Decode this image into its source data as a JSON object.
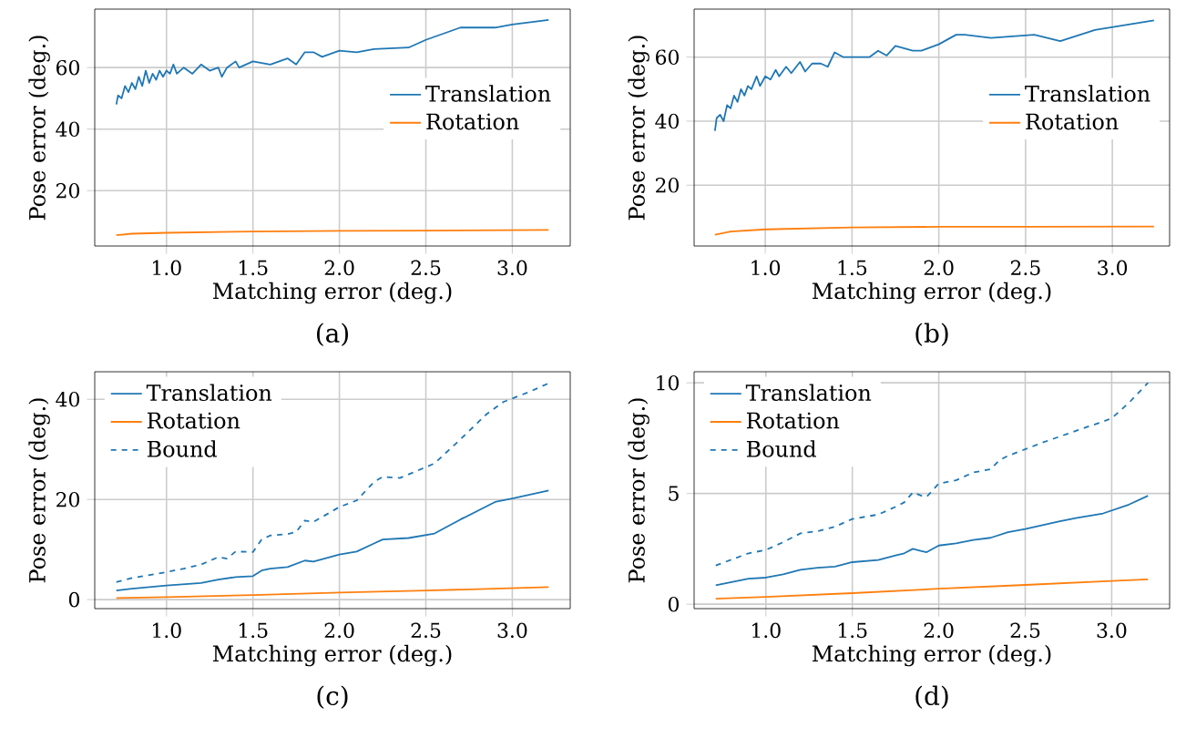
{
  "chart_data": [
    {
      "type": "line",
      "title": "(a)",
      "xlabel": "Matching error (deg.)",
      "ylabel": "Pose error (deg.)",
      "xlim": [
        0.585,
        3.335
      ],
      "ylim": [
        2,
        79
      ],
      "xticks": [
        {
          "value": 1,
          "label": "1.0"
        },
        {
          "value": 1.5,
          "label": "1.5"
        },
        {
          "value": 2,
          "label": "2.0"
        },
        {
          "value": 2.5,
          "label": "2.5"
        },
        {
          "value": 3,
          "label": "3.0"
        }
      ],
      "yticks": [
        20,
        40,
        60
      ],
      "grid": true,
      "legend": "right",
      "series": [
        {
          "name": "Translation",
          "color": "#1f77b4",
          "x": [
            0.71,
            0.72,
            0.74,
            0.76,
            0.78,
            0.8,
            0.82,
            0.84,
            0.86,
            0.88,
            0.9,
            0.92,
            0.94,
            0.96,
            0.98,
            1.0,
            1.02,
            1.04,
            1.06,
            1.1,
            1.15,
            1.2,
            1.25,
            1.3,
            1.32,
            1.35,
            1.4,
            1.42,
            1.5,
            1.6,
            1.7,
            1.75,
            1.8,
            1.85,
            1.9,
            2.0,
            2.1,
            2.2,
            2.4,
            2.5,
            2.7,
            2.9,
            3.0,
            3.21
          ],
          "values": [
            48,
            51,
            50,
            54,
            52,
            55,
            53,
            57,
            54,
            59,
            55,
            58,
            56,
            59,
            57,
            59,
            58,
            61,
            58,
            60,
            58,
            61,
            59,
            60,
            57,
            60,
            62,
            60,
            62,
            61,
            63,
            61,
            65,
            65,
            63.5,
            65.5,
            65,
            66,
            66.5,
            69,
            73,
            73,
            74,
            75.5
          ]
        },
        {
          "name": "Rotation",
          "color": "#ff7f0e",
          "x": [
            0.71,
            0.8,
            1.0,
            1.5,
            2.0,
            2.5,
            3.21
          ],
          "values": [
            5.5,
            6.0,
            6.3,
            6.7,
            6.9,
            7.0,
            7.2
          ]
        }
      ]
    },
    {
      "type": "line",
      "title": "(b)",
      "xlabel": "Matching error (deg.)",
      "ylabel": "Pose error (deg.)",
      "xlim": [
        0.59,
        3.33
      ],
      "ylim": [
        1,
        75
      ],
      "xticks": [
        {
          "value": 1,
          "label": "1.0"
        },
        {
          "value": 1.5,
          "label": "1.5"
        },
        {
          "value": 2,
          "label": "2.0"
        },
        {
          "value": 2.5,
          "label": "2.5"
        },
        {
          "value": 3,
          "label": "3.0"
        }
      ],
      "yticks": [
        20,
        40,
        60
      ],
      "grid": true,
      "legend": "right",
      "series": [
        {
          "name": "Translation",
          "color": "#1f77b4",
          "x": [
            0.71,
            0.72,
            0.74,
            0.76,
            0.78,
            0.8,
            0.82,
            0.84,
            0.86,
            0.88,
            0.9,
            0.92,
            0.95,
            0.97,
            1.0,
            1.03,
            1.06,
            1.08,
            1.12,
            1.15,
            1.2,
            1.23,
            1.27,
            1.32,
            1.36,
            1.4,
            1.45,
            1.5,
            1.6,
            1.65,
            1.7,
            1.75,
            1.85,
            1.9,
            2.0,
            2.1,
            2.15,
            2.3,
            2.55,
            2.7,
            2.9,
            3.24
          ],
          "values": [
            37,
            41,
            42,
            40,
            45,
            44,
            48,
            46,
            50,
            48,
            51,
            50,
            54,
            51,
            54,
            53,
            56,
            54,
            57,
            55,
            58.5,
            55.5,
            58,
            58,
            57,
            61.5,
            60,
            60,
            60,
            62,
            60.5,
            63.5,
            62,
            62,
            64,
            67,
            67,
            66,
            67,
            65,
            68.5,
            71.5
          ]
        },
        {
          "name": "Rotation",
          "color": "#ff7f0e",
          "x": [
            0.71,
            0.8,
            1.0,
            1.5,
            2.0,
            2.5,
            3.24
          ],
          "values": [
            4.5,
            5.5,
            6.2,
            6.8,
            7.0,
            7.0,
            7.1
          ]
        }
      ]
    },
    {
      "type": "line",
      "title": "(c)",
      "xlabel": "Matching error (deg.)",
      "ylabel": "Pose error (deg.)",
      "xlim": [
        0.585,
        3.335
      ],
      "ylim": [
        -1.8,
        45.5
      ],
      "xticks": [
        {
          "value": 1,
          "label": "1.0"
        },
        {
          "value": 1.5,
          "label": "1.5"
        },
        {
          "value": 2,
          "label": "2.0"
        },
        {
          "value": 2.5,
          "label": "2.5"
        },
        {
          "value": 3,
          "label": "3.0"
        }
      ],
      "yticks": [
        0,
        20,
        40
      ],
      "grid": true,
      "legend": "top left",
      "series": [
        {
          "name": "Translation",
          "color": "#1f77b4",
          "x": [
            0.71,
            0.8,
            1.0,
            1.2,
            1.3,
            1.4,
            1.5,
            1.55,
            1.6,
            1.7,
            1.8,
            1.85,
            2.0,
            2.1,
            2.2,
            2.25,
            2.4,
            2.55,
            2.7,
            2.9,
            3.0,
            3.21
          ],
          "values": [
            1.8,
            2.2,
            2.8,
            3.3,
            4.0,
            4.5,
            4.7,
            5.8,
            6.2,
            6.5,
            7.8,
            7.6,
            9.0,
            9.6,
            11.2,
            12.0,
            12.3,
            13.2,
            16,
            19.5,
            20.2,
            21.8
          ]
        },
        {
          "name": "Rotation",
          "color": "#ff7f0e",
          "x": [
            0.71,
            1.0,
            1.5,
            2.0,
            2.5,
            3.21
          ],
          "values": [
            0.3,
            0.5,
            0.9,
            1.4,
            1.8,
            2.5
          ]
        },
        {
          "name": "Bound",
          "color": "#1f77b4",
          "line_style": "dashed",
          "x": [
            0.71,
            0.8,
            1.0,
            1.1,
            1.2,
            1.3,
            1.35,
            1.4,
            1.5,
            1.55,
            1.6,
            1.7,
            1.75,
            1.8,
            1.85,
            2.0,
            2.1,
            2.2,
            2.25,
            2.35,
            2.4,
            2.55,
            2.7,
            2.85,
            2.95,
            3.1,
            3.21
          ],
          "values": [
            3.5,
            4.3,
            5.5,
            6.2,
            7.0,
            8.5,
            8.2,
            9.6,
            9.5,
            12.0,
            12.8,
            13.1,
            13.5,
            15.8,
            15.5,
            18.5,
            19.8,
            23.5,
            24.5,
            24.3,
            25,
            27.2,
            32,
            37,
            39.5,
            41.5,
            43.2
          ]
        }
      ]
    },
    {
      "type": "line",
      "title": "(d)",
      "xlabel": "Matching error (deg.)",
      "ylabel": "Pose error (deg.)",
      "xlim": [
        0.585,
        3.335
      ],
      "ylim": [
        -0.2,
        10.5
      ],
      "xticks": [
        {
          "value": 1,
          "label": "1.0"
        },
        {
          "value": 1.5,
          "label": "1.5"
        },
        {
          "value": 2,
          "label": "2.0"
        },
        {
          "value": 2.5,
          "label": "2.5"
        },
        {
          "value": 3,
          "label": "3.0"
        }
      ],
      "yticks": [
        0,
        5,
        10
      ],
      "grid": true,
      "legend": "top left",
      "series": [
        {
          "name": "Translation",
          "color": "#1f77b4",
          "x": [
            0.71,
            0.9,
            1.0,
            1.1,
            1.2,
            1.3,
            1.4,
            1.5,
            1.65,
            1.75,
            1.8,
            1.85,
            1.9,
            1.93,
            2.0,
            2.1,
            2.2,
            2.3,
            2.4,
            2.5,
            2.7,
            2.8,
            2.95,
            3.1,
            3.21
          ],
          "values": [
            0.85,
            1.15,
            1.2,
            1.35,
            1.55,
            1.65,
            1.7,
            1.9,
            2.0,
            2.2,
            2.3,
            2.5,
            2.4,
            2.35,
            2.65,
            2.75,
            2.9,
            3.0,
            3.25,
            3.4,
            3.75,
            3.9,
            4.1,
            4.5,
            4.9
          ]
        },
        {
          "name": "Rotation",
          "color": "#ff7f0e",
          "x": [
            0.71,
            1.0,
            1.5,
            2.0,
            2.5,
            3.0,
            3.21
          ],
          "values": [
            0.25,
            0.33,
            0.5,
            0.7,
            0.87,
            1.05,
            1.12
          ]
        },
        {
          "name": "Bound",
          "color": "#1f77b4",
          "line_style": "dashed",
          "x": [
            0.71,
            0.9,
            1.0,
            1.1,
            1.2,
            1.3,
            1.4,
            1.5,
            1.65,
            1.75,
            1.8,
            1.85,
            1.9,
            1.93,
            2.0,
            2.1,
            2.2,
            2.3,
            2.35,
            2.4,
            2.6,
            2.8,
            2.95,
            3.0,
            3.1,
            3.21
          ],
          "values": [
            1.75,
            2.3,
            2.45,
            2.8,
            3.2,
            3.3,
            3.5,
            3.85,
            4.05,
            4.4,
            4.6,
            5.05,
            4.9,
            4.85,
            5.45,
            5.6,
            5.95,
            6.1,
            6.5,
            6.7,
            7.3,
            7.85,
            8.25,
            8.4,
            9.1,
            10.0
          ]
        }
      ]
    }
  ]
}
